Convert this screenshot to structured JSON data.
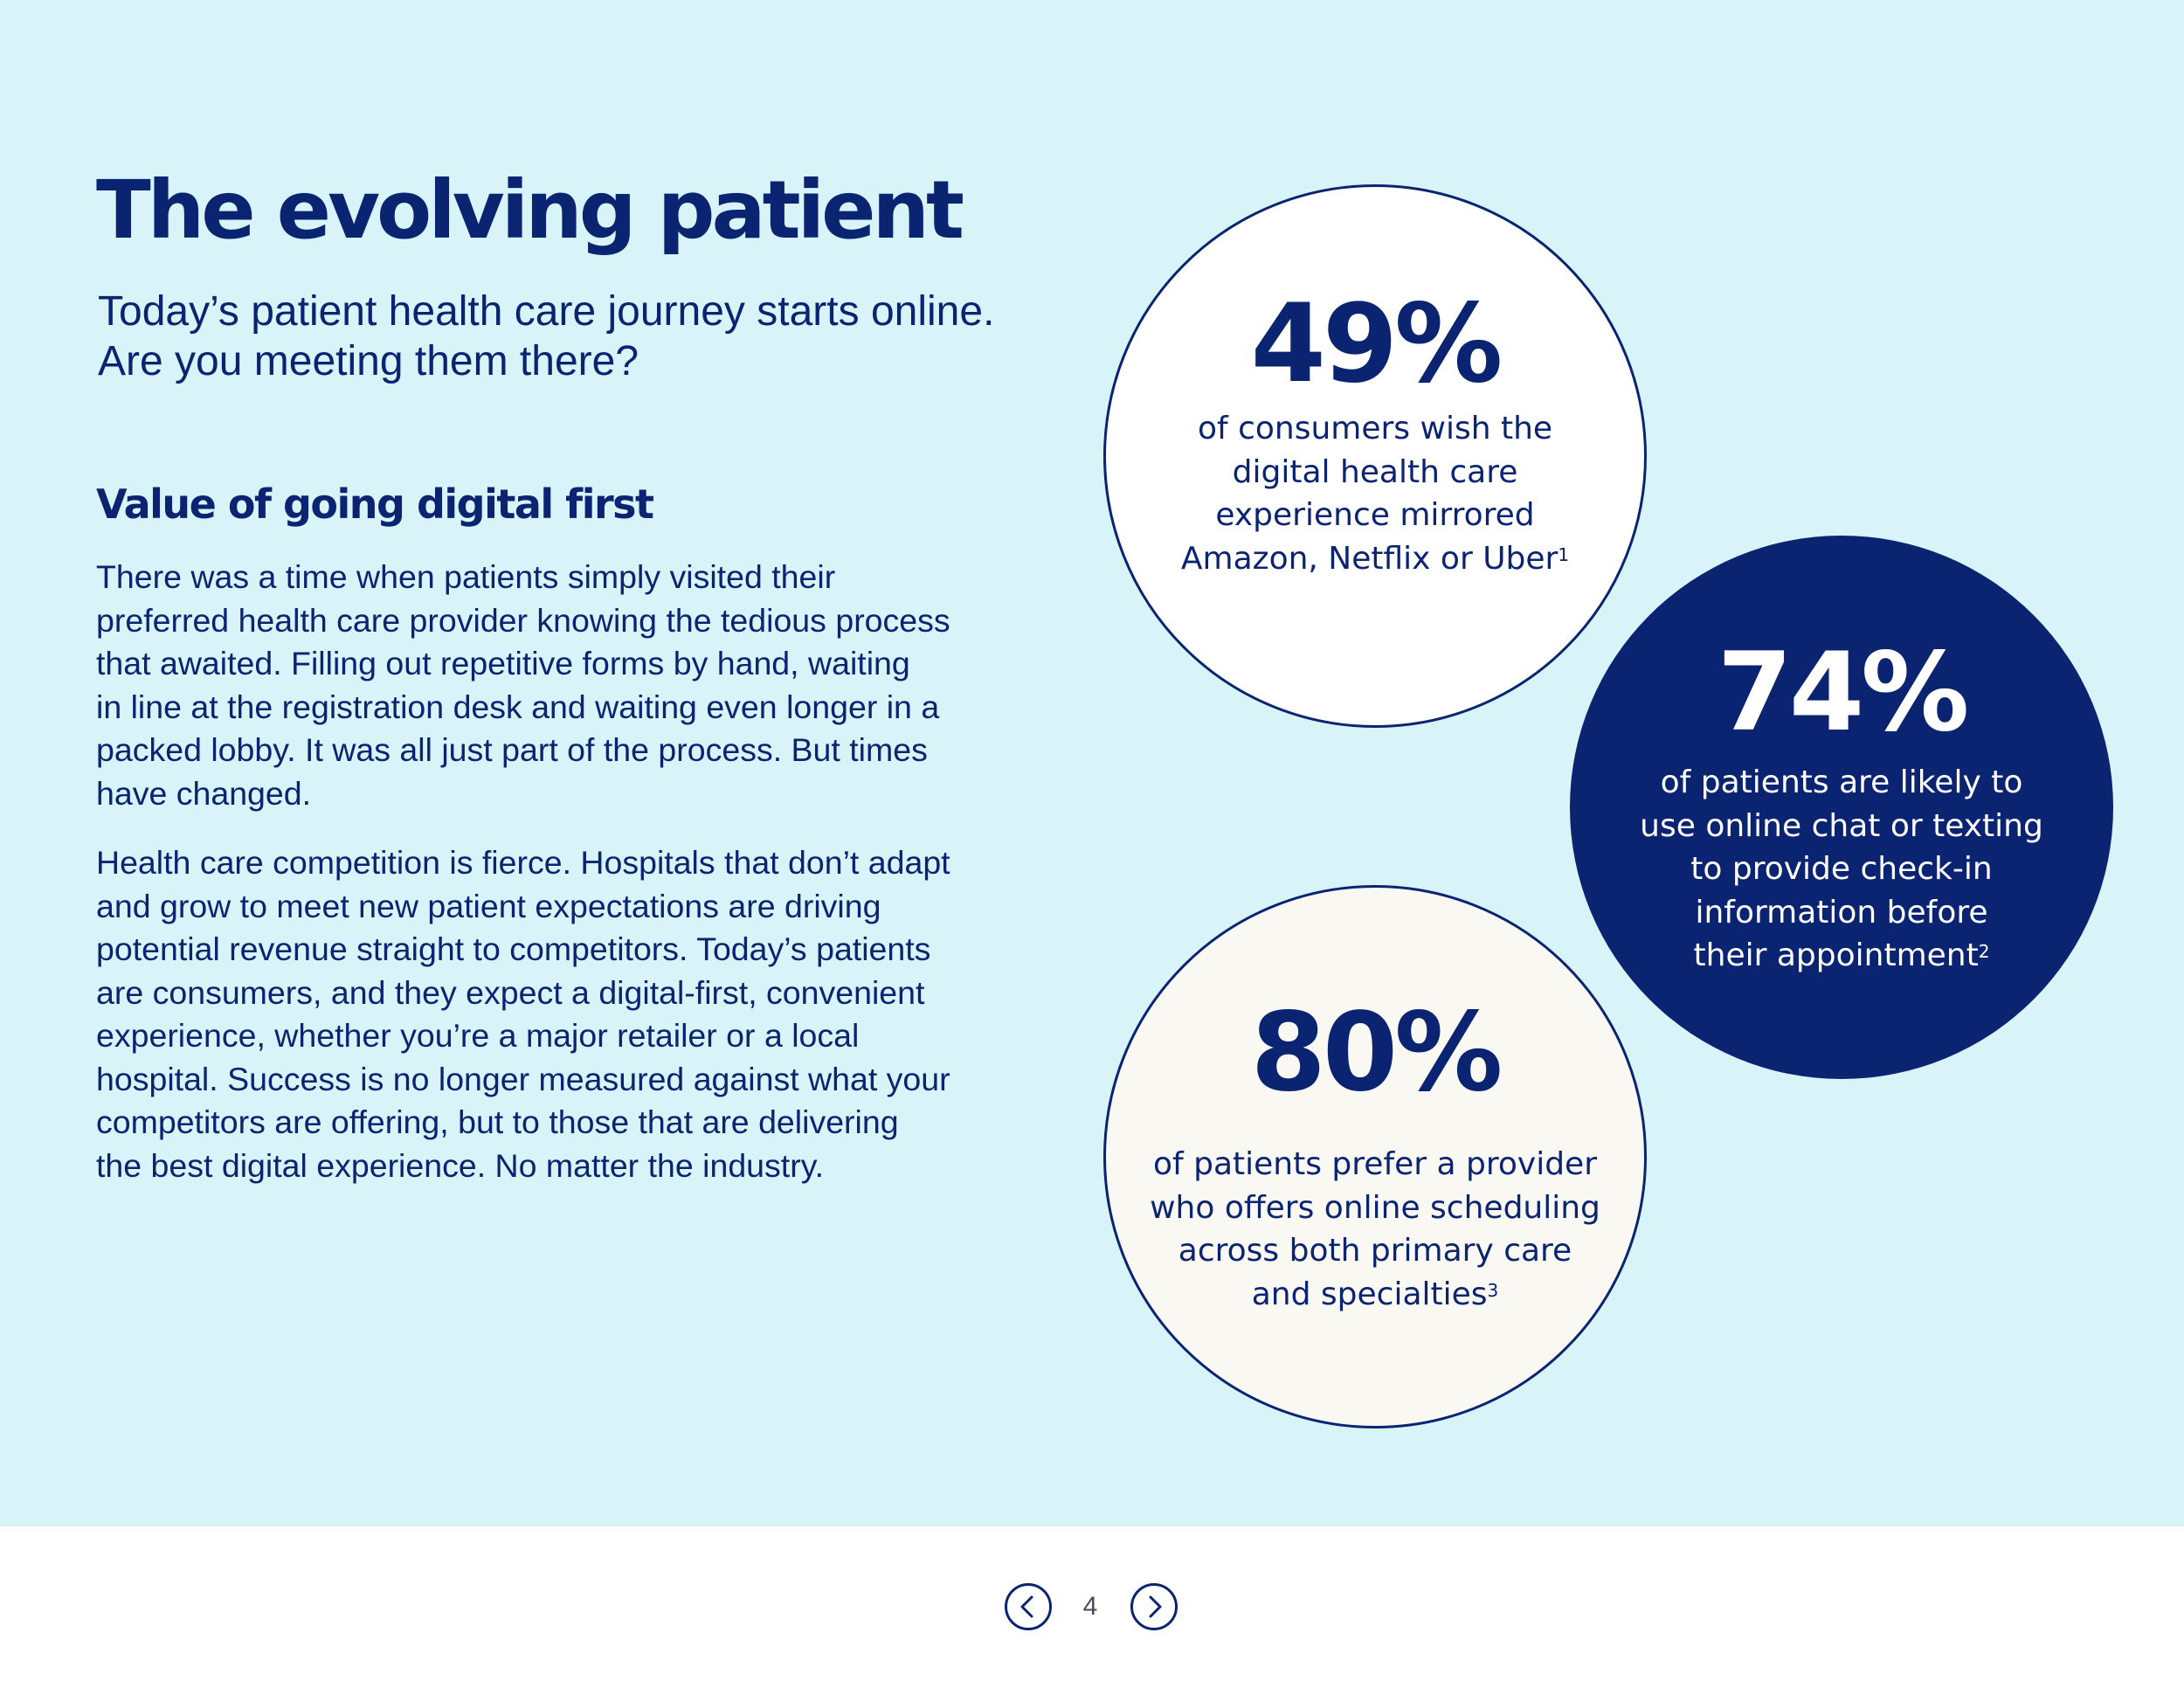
{
  "header": {
    "title": "The evolving patient",
    "subtitle_lines": [
      "Today’s patient health care journey starts online.",
      "Are you meeting them there?"
    ]
  },
  "section": {
    "heading": "Value of going digital first",
    "paragraph1_lines": [
      "There was a time when patients simply visited their",
      "preferred health care provider knowing the tedious process",
      "that awaited. Filling out repetitive forms by hand, waiting",
      "in line at the registration desk and waiting even longer in a",
      "packed lobby. It was all just part of the process. But times",
      "have changed."
    ],
    "paragraph2_lines": [
      "Health care competition is fierce. Hospitals that don’t adapt",
      "and grow to meet new patient expectations are driving",
      "potential revenue straight to competitors. Today’s patients",
      "are consumers, and they expect a digital-first, convenient",
      "experience, whether you’re a major retailer or a local",
      "hospital. Success is no longer measured against what your",
      "competitors are offering, but to those that are delivering",
      "the best digital experience. No matter the industry."
    ]
  },
  "stats": [
    {
      "value": "49%",
      "lines": [
        "of consumers wish the",
        "digital health care",
        "experience mirrored",
        "Amazon, Netflix or Uber"
      ],
      "footnote": "1",
      "fill": "#ffffff"
    },
    {
      "value": "74%",
      "lines": [
        "of patients are likely to",
        "use online chat or texting",
        "to provide check-in",
        "information before",
        "their appointment"
      ],
      "footnote": "2",
      "fill": "#0a2472"
    },
    {
      "value": "80%",
      "lines": [
        "of patients prefer a provider",
        "who offers online scheduling",
        "across both primary care",
        "and specialties"
      ],
      "footnote": "3",
      "fill": "#faf8f3"
    }
  ],
  "pagination": {
    "current_page": "4",
    "prev_icon": "chevron-left-icon",
    "next_icon": "chevron-right-icon"
  },
  "colors": {
    "navy": "#0a2472",
    "panel_background": "#d8f4f9",
    "cream": "#faf8f3"
  }
}
